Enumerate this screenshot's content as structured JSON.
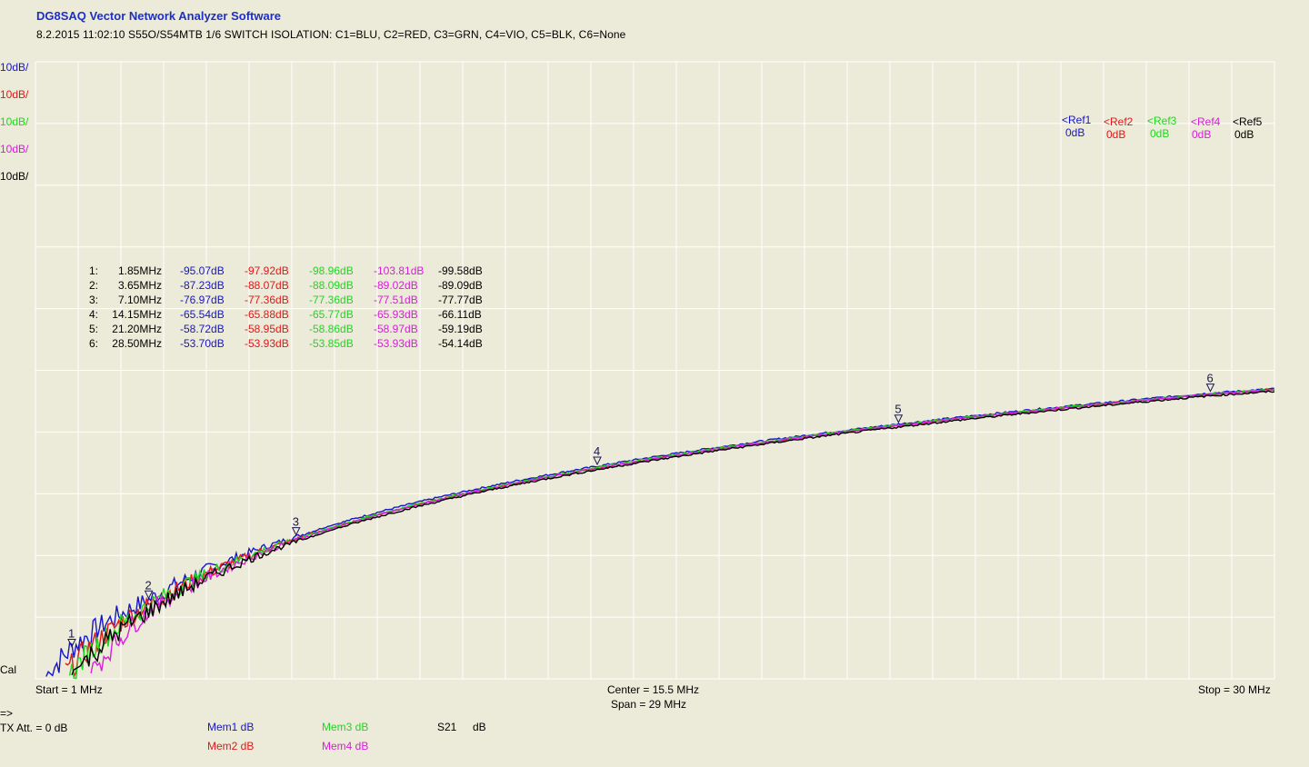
{
  "header": {
    "app_title": "DG8SAQ Vector Network Analyzer Software",
    "subtitle": "8.2.2015   11:02:10    S55O/S54MTB 1/6 SWITCH ISOLATION:  C1=BLU,  C2=RED,  C3=GRN,  C4=VIO,  C5=BLK,  C6=None"
  },
  "colors": {
    "c1": "#1616c8",
    "c2": "#e01818",
    "c3": "#1ed81e",
    "c4": "#d81ed8",
    "c5": "#000000",
    "background": "#ecead9",
    "grid": "#ffffff"
  },
  "scales": [
    {
      "text": "10dB/",
      "color": "#1616c8"
    },
    {
      "text": "10dB/",
      "color": "#e01818"
    },
    {
      "text": "10dB/",
      "color": "#1ed81e"
    },
    {
      "text": "10dB/",
      "color": "#d81ed8"
    },
    {
      "text": "10dB/",
      "color": "#000000"
    }
  ],
  "refs": [
    {
      "name": "<Ref1",
      "value": "0dB",
      "color": "#1616c8"
    },
    {
      "name": "<Ref2",
      "value": "0dB",
      "color": "#e01818"
    },
    {
      "name": "<Ref3",
      "value": "0dB",
      "color": "#1ed81e"
    },
    {
      "name": "<Ref4",
      "value": "0dB",
      "color": "#d81ed8"
    },
    {
      "name": "<Ref5",
      "value": "0dB",
      "color": "#000000"
    }
  ],
  "markers": [
    {
      "id": "1",
      "freq": "1.85MHz",
      "vals": [
        "-95.07dB",
        "-97.92dB",
        "-98.96dB",
        "-103.81dB",
        "-99.58dB"
      ]
    },
    {
      "id": "2",
      "freq": "3.65MHz",
      "vals": [
        "-87.23dB",
        "-88.07dB",
        "-88.09dB",
        "-89.02dB",
        "-89.09dB"
      ]
    },
    {
      "id": "3",
      "freq": "7.10MHz",
      "vals": [
        "-76.97dB",
        "-77.36dB",
        "-77.36dB",
        "-77.51dB",
        "-77.77dB"
      ]
    },
    {
      "id": "4",
      "freq": "14.15MHz",
      "vals": [
        "-65.54dB",
        "-65.88dB",
        "-65.77dB",
        "-65.93dB",
        "-66.11dB"
      ]
    },
    {
      "id": "5",
      "freq": "21.20MHz",
      "vals": [
        "-58.72dB",
        "-58.95dB",
        "-58.86dB",
        "-58.97dB",
        "-59.19dB"
      ]
    },
    {
      "id": "6",
      "freq": "28.50MHz",
      "vals": [
        "-53.70dB",
        "-53.93dB",
        "-53.85dB",
        "-53.93dB",
        "-54.14dB"
      ]
    }
  ],
  "chart_data": {
    "type": "line",
    "xlabel": "",
    "ylabel": "",
    "xlim": [
      1,
      30
    ],
    "ylim": [
      -100,
      0
    ],
    "x_unit": "MHz",
    "y_unit": "dB",
    "grid": true,
    "series": [
      {
        "name": "C1",
        "color": "#1616c8",
        "x": [
          1.85,
          3.65,
          7.1,
          14.15,
          21.2,
          28.5,
          30
        ],
        "y": [
          -95.07,
          -87.23,
          -76.97,
          -65.54,
          -58.72,
          -53.7,
          -53.0
        ]
      },
      {
        "name": "C2",
        "color": "#e01818",
        "x": [
          1.85,
          3.65,
          7.1,
          14.15,
          21.2,
          28.5,
          30
        ],
        "y": [
          -97.92,
          -88.07,
          -77.36,
          -65.88,
          -58.95,
          -53.93,
          -53.2
        ]
      },
      {
        "name": "C3",
        "color": "#1ed81e",
        "x": [
          1.85,
          3.65,
          7.1,
          14.15,
          21.2,
          28.5,
          30
        ],
        "y": [
          -98.96,
          -88.09,
          -77.36,
          -65.77,
          -58.86,
          -53.85,
          -53.1
        ]
      },
      {
        "name": "C4",
        "color": "#d81ed8",
        "x": [
          1.85,
          3.65,
          7.1,
          14.15,
          21.2,
          28.5,
          30
        ],
        "y": [
          -103.81,
          -89.02,
          -77.51,
          -65.93,
          -58.97,
          -53.93,
          -53.2
        ]
      },
      {
        "name": "C5",
        "color": "#000000",
        "x": [
          1.85,
          3.65,
          7.1,
          14.15,
          21.2,
          28.5,
          30
        ],
        "y": [
          -99.58,
          -89.09,
          -77.77,
          -66.11,
          -59.19,
          -54.14,
          -53.4
        ]
      }
    ],
    "marker_freqs": [
      1.85,
      3.65,
      7.1,
      14.15,
      21.2,
      28.5
    ]
  },
  "axis": {
    "start": "Start = 1 MHz",
    "center": "Center = 15.5 MHz",
    "span": "Span = 29 MHz",
    "stop": "Stop = 30 MHz",
    "cal": "Cal"
  },
  "footer": {
    "arrow": "=>",
    "tx_att": "TX Att. = 0 dB",
    "mem1": "Mem1 dB",
    "mem2": "Mem2 dB",
    "mem3": "Mem3 dB",
    "mem4": "Mem4 dB",
    "s21": "S21",
    "s21_unit": "dB"
  }
}
